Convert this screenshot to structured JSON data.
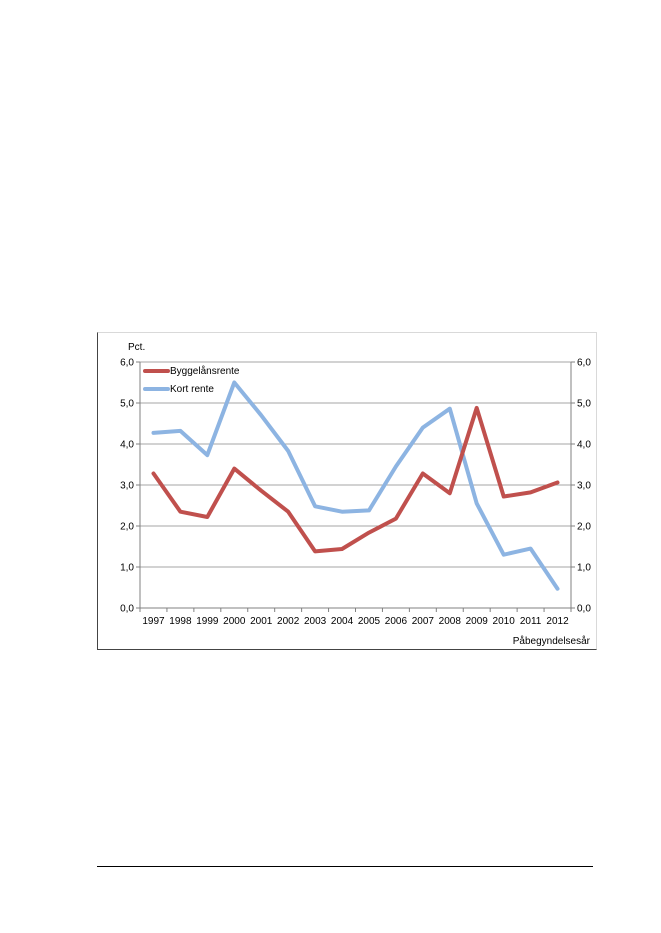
{
  "chart_data": {
    "type": "line",
    "title": "",
    "ylabel": "Pct.",
    "xlabel": "Påbegyndelsesår",
    "categories": [
      "1997",
      "1998",
      "1999",
      "2000",
      "2001",
      "2002",
      "2003",
      "2004",
      "2005",
      "2006",
      "2007",
      "2008",
      "2009",
      "2010",
      "2011",
      "2012"
    ],
    "ylim": [
      0,
      6
    ],
    "yticks": [
      "0,0",
      "1,0",
      "2,0",
      "3,0",
      "4,0",
      "5,0",
      "6,0"
    ],
    "grid": true,
    "legend_position": "top-left",
    "series": [
      {
        "name": "Byggelånsrente",
        "color": "#c0504d",
        "values": [
          3.28,
          2.35,
          2.22,
          3.4,
          2.86,
          2.35,
          1.38,
          1.44,
          1.84,
          2.18,
          3.28,
          2.8,
          4.88,
          2.72,
          2.82,
          3.06
        ]
      },
      {
        "name": "Kort rente",
        "color": "#8db4e2",
        "values": [
          4.27,
          4.32,
          3.73,
          5.5,
          4.7,
          3.83,
          2.48,
          2.35,
          2.38,
          3.45,
          4.4,
          4.86,
          2.55,
          1.3,
          1.45,
          0.47
        ]
      }
    ]
  }
}
